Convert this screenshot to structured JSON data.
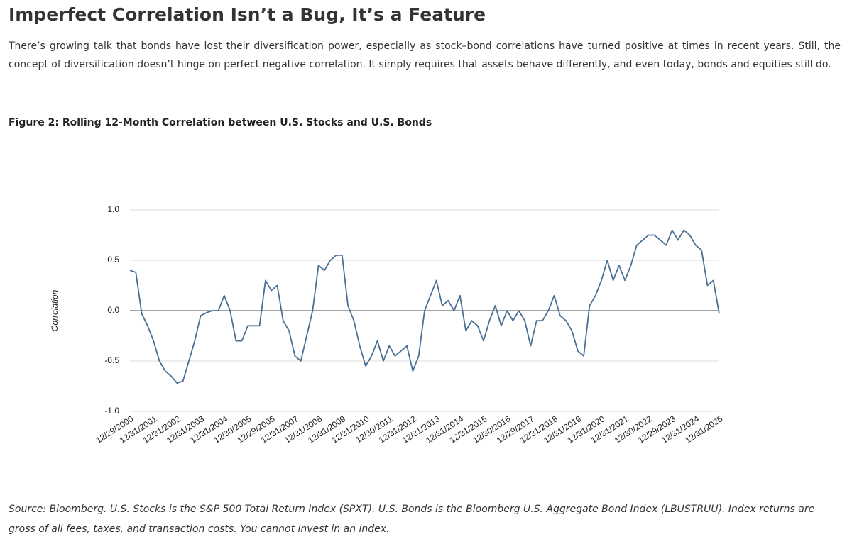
{
  "title": "Imperfect Correlation Isn’t a Bug, It’s a Feature",
  "intro": "There’s growing talk that bonds have lost their diversification power, especially as stock–bond correlations have turned positive at times in recent years. Still, the concept of diversification doesn’t hinge on perfect negative correlation. It simply requires that assets behave differently, and even today, bonds and equities still do.",
  "chart_data": {
    "type": "line",
    "title": "Figure 2: Rolling 12-Month Correlation between U.S. Stocks and U.S. Bonds",
    "y_label": "Correlation",
    "color": "#4a6f95",
    "ylim": [
      -1,
      1
    ],
    "yticks": [
      {
        "value": -1,
        "label": "-1.0"
      },
      {
        "value": -0.5,
        "label": "-0.5"
      },
      {
        "value": 0,
        "label": "0.0"
      },
      {
        "value": 0.5,
        "label": "0.5"
      },
      {
        "value": 1,
        "label": "1.0"
      }
    ],
    "grid": true,
    "categories": [
      "12/29/2000",
      null,
      null,
      null,
      "12/31/2001",
      null,
      null,
      null,
      "12/31/2002",
      null,
      null,
      null,
      "12/31/2003",
      null,
      null,
      null,
      "12/31/2004",
      null,
      null,
      null,
      "12/30/2005",
      null,
      null,
      null,
      "12/29/2006",
      null,
      null,
      null,
      "12/31/2007",
      null,
      null,
      null,
      "12/31/2008",
      null,
      null,
      null,
      "12/31/2009",
      null,
      null,
      null,
      "12/31/2010",
      null,
      null,
      null,
      "12/30/2011",
      null,
      null,
      null,
      "12/31/2012",
      null,
      null,
      null,
      "12/31/2013",
      null,
      null,
      null,
      "12/31/2014",
      null,
      null,
      null,
      "12/31/2015",
      null,
      null,
      null,
      "12/30/2016",
      null,
      null,
      null,
      "12/29/2017",
      null,
      null,
      null,
      "12/31/2018",
      null,
      null,
      null,
      "12/31/2019",
      null,
      null,
      null,
      "12/31/2020",
      null,
      null,
      null,
      "12/31/2021",
      null,
      null,
      null,
      "12/30/2022",
      null,
      null,
      null,
      "12/29/2023",
      null,
      null,
      null,
      "12/31/2024",
      null,
      null,
      null,
      "12/31/2025"
    ],
    "values": [
      0.4,
      0.38,
      -0.03,
      -0.15,
      -0.3,
      -0.5,
      -0.6,
      -0.65,
      -0.72,
      -0.7,
      -0.5,
      -0.3,
      -0.05,
      -0.02,
      0,
      0,
      0.15,
      0,
      -0.3,
      -0.3,
      -0.15,
      -0.15,
      -0.15,
      0.3,
      0.2,
      0.25,
      -0.1,
      -0.2,
      -0.45,
      -0.5,
      -0.25,
      0,
      0.45,
      0.4,
      0.5,
      0.55,
      0.55,
      0.05,
      -0.1,
      -0.35,
      -0.55,
      -0.45,
      -0.3,
      -0.5,
      -0.35,
      -0.45,
      -0.4,
      -0.35,
      -0.6,
      -0.45,
      0,
      0.15,
      0.3,
      0.05,
      0.1,
      0,
      0.15,
      -0.2,
      -0.1,
      -0.15,
      -0.3,
      -0.1,
      0.05,
      -0.15,
      0,
      -0.1,
      0,
      -0.1,
      -0.35,
      -0.1,
      -0.1,
      0,
      0.15,
      -0.05,
      -0.1,
      -0.2,
      -0.4,
      -0.45,
      0.05,
      0.15,
      0.3,
      0.5,
      0.3,
      0.45,
      0.3,
      0.45,
      0.65,
      0.7,
      0.75,
      0.75,
      0.7,
      0.65,
      0.8,
      0.7,
      0.8,
      0.75,
      0.65,
      0.6,
      0.25,
      0.3,
      -0.03
    ]
  },
  "source": "Source: Bloomberg. U.S. Stocks is the S&P 500 Total Return Index (SPXT). U.S. Bonds is the Bloomberg U.S. Aggregate Bond Index (LBUSTRUU). Index returns are gross of all fees, taxes, and transaction costs. You cannot invest in an index."
}
